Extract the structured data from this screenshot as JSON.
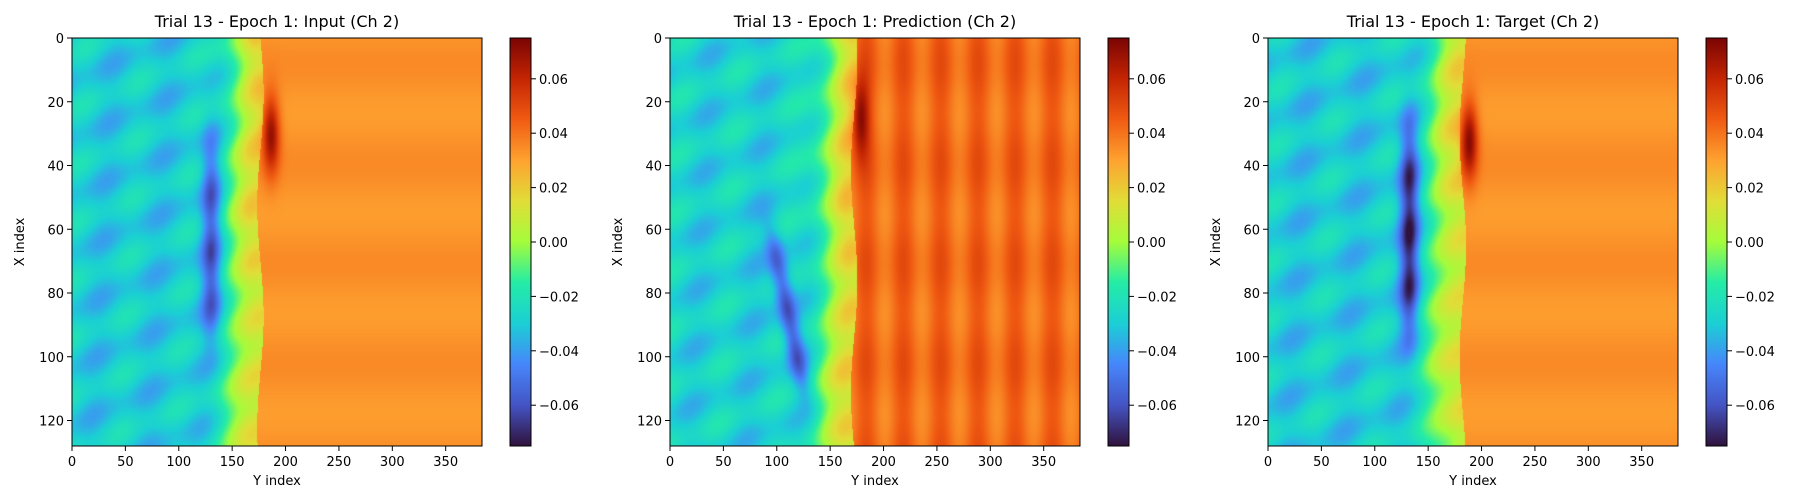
{
  "chart_data": [
    {
      "type": "heatmap",
      "title": "Trial 13 - Epoch 1: Input (Ch 2)",
      "xlabel": "Y index",
      "ylabel": "X index",
      "xlim": [
        0,
        384
      ],
      "ylim": [
        128,
        0
      ],
      "xticks": [
        0,
        50,
        100,
        150,
        200,
        250,
        300,
        350
      ],
      "yticks": [
        0,
        20,
        40,
        60,
        80,
        100,
        120
      ],
      "colorbar": {
        "min": -0.075,
        "max": 0.075,
        "ticks": [
          "0.06",
          "0.04",
          "0.02",
          "0.00",
          "−0.02",
          "−0.04",
          "−0.06"
        ],
        "tick_values": [
          0.06,
          0.04,
          0.02,
          0.0,
          -0.02,
          -0.04,
          -0.06
        ],
        "colormap": "turbo"
      },
      "features": {
        "front_y": 176,
        "ahead_value": 0.033,
        "behind_value": -0.03,
        "vortex": {
          "y": 130,
          "x_from": 30,
          "x_to": 95,
          "value": -0.06
        },
        "peak": {
          "y": 186,
          "x": 30,
          "value": 0.07
        }
      }
    },
    {
      "type": "heatmap",
      "title": "Trial 13 - Epoch 1: Prediction (Ch 2)",
      "xlabel": "Y index",
      "ylabel": "X index",
      "xlim": [
        0,
        384
      ],
      "ylim": [
        128,
        0
      ],
      "xticks": [
        0,
        50,
        100,
        150,
        200,
        250,
        300,
        350
      ],
      "yticks": [
        0,
        20,
        40,
        60,
        80,
        100,
        120
      ],
      "colorbar": {
        "min": -0.075,
        "max": 0.075,
        "ticks": [
          "0.06",
          "0.04",
          "0.02",
          "0.00",
          "−0.02",
          "−0.04",
          "−0.06"
        ],
        "tick_values": [
          0.06,
          0.04,
          0.02,
          0.0,
          -0.02,
          -0.04,
          -0.06
        ],
        "colormap": "turbo"
      },
      "features": {
        "front_y": 172,
        "ahead_value": 0.042,
        "behind_value": -0.028,
        "vortex": {
          "y": 110,
          "x_from": 60,
          "x_to": 112,
          "value": -0.06
        },
        "peak": {
          "y": 178,
          "x": 25,
          "value": 0.07
        }
      }
    },
    {
      "type": "heatmap",
      "title": "Trial 13 - Epoch 1: Target (Ch 2)",
      "xlabel": "Y index",
      "ylabel": "X index",
      "xlim": [
        0,
        384
      ],
      "ylim": [
        128,
        0
      ],
      "xticks": [
        0,
        50,
        100,
        150,
        200,
        250,
        300,
        350
      ],
      "yticks": [
        0,
        20,
        40,
        60,
        80,
        100,
        120
      ],
      "colorbar": {
        "min": -0.075,
        "max": 0.075,
        "ticks": [
          "0.06",
          "0.04",
          "0.02",
          "0.00",
          "−0.02",
          "−0.04",
          "−0.06"
        ],
        "tick_values": [
          0.06,
          0.04,
          0.02,
          0.0,
          -0.02,
          -0.04,
          -0.06
        ],
        "colormap": "turbo"
      },
      "features": {
        "front_y": 182,
        "ahead_value": 0.033,
        "behind_value": -0.03,
        "vortex": {
          "y": 132,
          "x_from": 25,
          "x_to": 95,
          "value": -0.07
        },
        "peak": {
          "y": 188,
          "x": 32,
          "value": 0.072
        }
      }
    }
  ]
}
